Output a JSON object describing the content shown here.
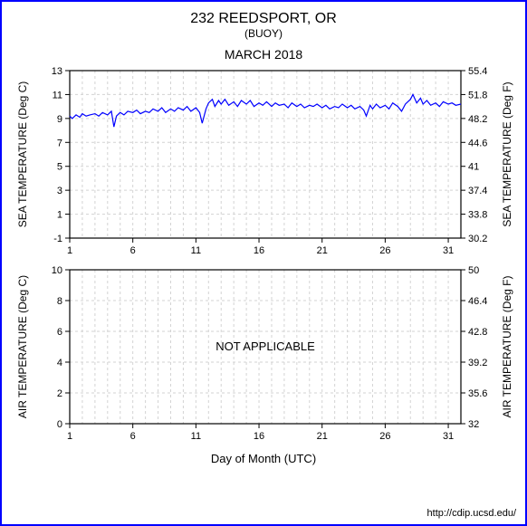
{
  "header": {
    "title": "232 REEDSPORT, OR",
    "subtitle": "(BUOY)",
    "month": "MARCH 2018"
  },
  "footer": {
    "url": "http://cdip.ucsd.edu/"
  },
  "xaxis": {
    "title": "Day of Month (UTC)",
    "min": 1,
    "max": 32,
    "ticks": [
      1,
      6,
      11,
      16,
      21,
      26,
      31
    ]
  },
  "chart1": {
    "type": "line",
    "y_left": {
      "label": "SEA TEMPERATURE (Deg C)",
      "min": -1,
      "max": 13,
      "ticks": [
        -1,
        1,
        3,
        5,
        7,
        9,
        11,
        13
      ]
    },
    "y_right": {
      "label": "SEA TEMPERATURE (Deg F)",
      "min": 30.2,
      "max": 55.4,
      "ticks": [
        30.2,
        33.8,
        37.4,
        41,
        44.6,
        48.2,
        51.8,
        55.4
      ]
    },
    "line_color": "#0000ff",
    "line_width": 1.2,
    "grid_color": "#d3d3d3",
    "axis_color": "#000000",
    "background_color": "#ffffff",
    "data": [
      [
        1,
        9.2
      ],
      [
        1.2,
        9.0
      ],
      [
        1.5,
        9.3
      ],
      [
        1.8,
        9.1
      ],
      [
        2,
        9.4
      ],
      [
        2.3,
        9.2
      ],
      [
        2.6,
        9.3
      ],
      [
        3,
        9.4
      ],
      [
        3.3,
        9.2
      ],
      [
        3.6,
        9.5
      ],
      [
        4,
        9.3
      ],
      [
        4.3,
        9.6
      ],
      [
        4.5,
        8.3
      ],
      [
        4.7,
        9.2
      ],
      [
        5,
        9.5
      ],
      [
        5.3,
        9.3
      ],
      [
        5.6,
        9.6
      ],
      [
        6,
        9.5
      ],
      [
        6.3,
        9.7
      ],
      [
        6.6,
        9.4
      ],
      [
        7,
        9.6
      ],
      [
        7.3,
        9.5
      ],
      [
        7.6,
        9.8
      ],
      [
        8,
        9.6
      ],
      [
        8.3,
        9.9
      ],
      [
        8.6,
        9.5
      ],
      [
        9,
        9.8
      ],
      [
        9.3,
        9.6
      ],
      [
        9.6,
        9.9
      ],
      [
        10,
        9.7
      ],
      [
        10.3,
        10.0
      ],
      [
        10.6,
        9.6
      ],
      [
        11,
        9.9
      ],
      [
        11.3,
        9.5
      ],
      [
        11.5,
        8.6
      ],
      [
        11.8,
        9.8
      ],
      [
        12,
        10.3
      ],
      [
        12.3,
        10.6
      ],
      [
        12.5,
        10.0
      ],
      [
        12.8,
        10.5
      ],
      [
        13,
        10.2
      ],
      [
        13.3,
        10.6
      ],
      [
        13.6,
        10.1
      ],
      [
        14,
        10.4
      ],
      [
        14.3,
        10.0
      ],
      [
        14.6,
        10.5
      ],
      [
        15,
        10.2
      ],
      [
        15.3,
        10.5
      ],
      [
        15.6,
        10.0
      ],
      [
        16,
        10.3
      ],
      [
        16.3,
        10.1
      ],
      [
        16.6,
        10.4
      ],
      [
        17,
        10.0
      ],
      [
        17.3,
        10.3
      ],
      [
        17.6,
        10.1
      ],
      [
        18,
        10.2
      ],
      [
        18.3,
        9.9
      ],
      [
        18.6,
        10.3
      ],
      [
        19,
        10.0
      ],
      [
        19.3,
        10.2
      ],
      [
        19.6,
        9.9
      ],
      [
        20,
        10.1
      ],
      [
        20.3,
        10.0
      ],
      [
        20.6,
        10.2
      ],
      [
        21,
        9.9
      ],
      [
        21.3,
        10.1
      ],
      [
        21.6,
        9.8
      ],
      [
        22,
        10.0
      ],
      [
        22.3,
        9.9
      ],
      [
        22.6,
        10.2
      ],
      [
        23,
        9.9
      ],
      [
        23.3,
        10.1
      ],
      [
        23.6,
        9.8
      ],
      [
        24,
        10.0
      ],
      [
        24.3,
        9.7
      ],
      [
        24.5,
        9.2
      ],
      [
        24.8,
        10.1
      ],
      [
        25,
        9.8
      ],
      [
        25.3,
        10.2
      ],
      [
        25.6,
        9.9
      ],
      [
        26,
        10.1
      ],
      [
        26.3,
        9.8
      ],
      [
        26.6,
        10.3
      ],
      [
        27,
        10.0
      ],
      [
        27.3,
        9.6
      ],
      [
        27.6,
        10.2
      ],
      [
        28,
        10.6
      ],
      [
        28.2,
        11.0
      ],
      [
        28.5,
        10.3
      ],
      [
        28.8,
        10.7
      ],
      [
        29,
        10.2
      ],
      [
        29.3,
        10.5
      ],
      [
        29.6,
        10.1
      ],
      [
        30,
        10.3
      ],
      [
        30.3,
        10.0
      ],
      [
        30.6,
        10.4
      ],
      [
        31,
        10.2
      ],
      [
        31.3,
        10.3
      ],
      [
        31.6,
        10.1
      ],
      [
        32,
        10.2
      ]
    ]
  },
  "chart2": {
    "type": "line",
    "y_left": {
      "label": "AIR TEMPERATURE (Deg C)",
      "min": 0,
      "max": 10,
      "ticks": [
        0,
        2,
        4,
        6,
        8,
        10
      ]
    },
    "y_right": {
      "label": "AIR TEMPERATURE (Deg F)",
      "min": 32,
      "max": 50,
      "ticks": [
        32,
        35.6,
        39.2,
        42.8,
        46.4,
        50
      ]
    },
    "grid_color": "#d3d3d3",
    "axis_color": "#000000",
    "background_color": "#ffffff",
    "overlay_text": "NOT APPLICABLE",
    "data": []
  }
}
